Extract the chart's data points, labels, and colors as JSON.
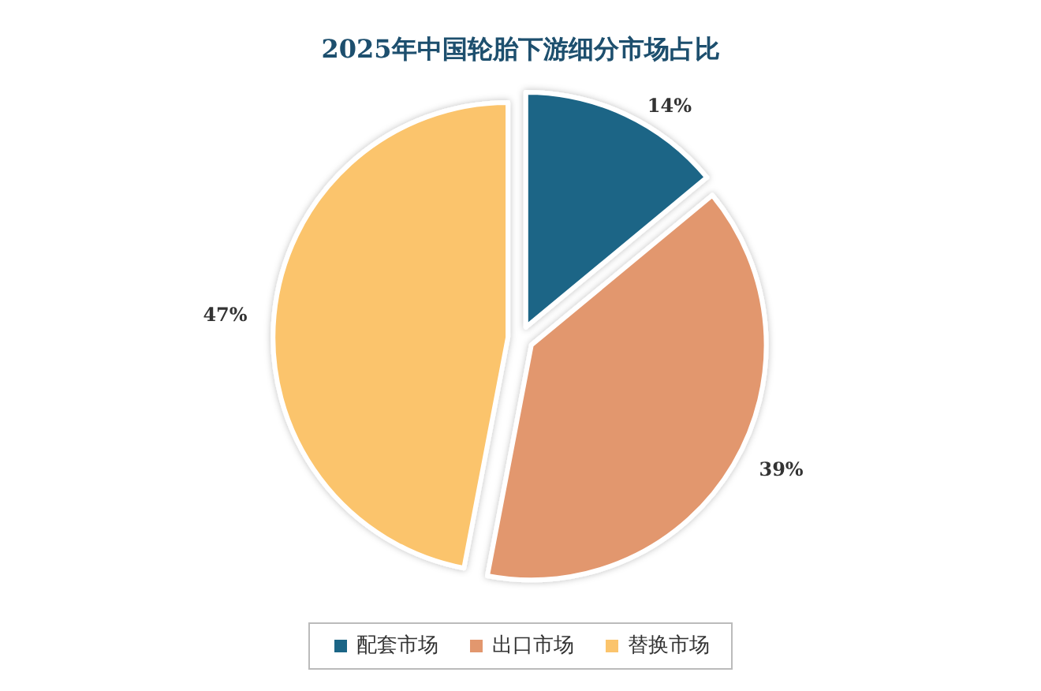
{
  "chart_data": {
    "type": "pie",
    "title": "2025年中国轮胎下游细分市场占比",
    "categories": [
      "配套市场",
      "出口市场",
      "替换市场"
    ],
    "values": [
      14,
      39,
      47
    ],
    "colors": [
      "#1b6586",
      "#e2976e",
      "#fbc46c"
    ],
    "value_labels": [
      "14%",
      "39%",
      "47%"
    ],
    "legend": "bottom"
  }
}
